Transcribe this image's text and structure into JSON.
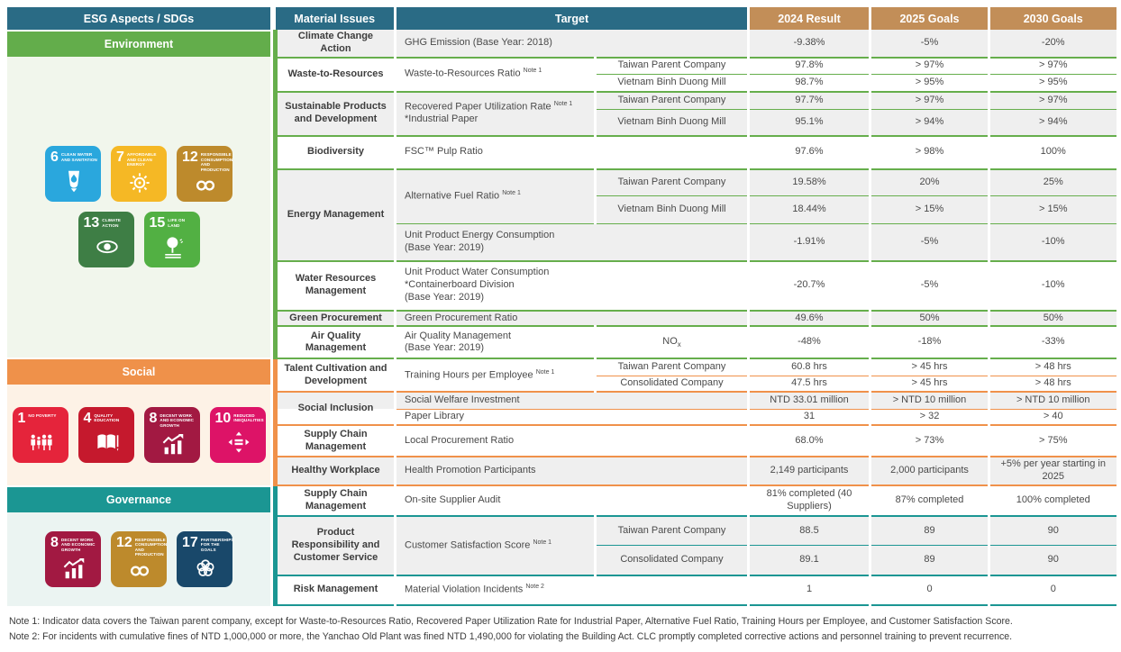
{
  "theme": {
    "header": "#2a6b85",
    "accent": "#c28e58",
    "env": "#66ae4c",
    "soc": "#f0914a",
    "gov": "#1b9693",
    "alt": "#efefef"
  },
  "left_panel": {
    "header": "ESG Aspects / SDGs",
    "sections": [
      {
        "label": "Environment",
        "color": "#63ad4b",
        "light": "#f1f6ec",
        "sdgs": [
          {
            "num": "6",
            "title": "Clean Water and Sanitation",
            "color": "#2aa7dd"
          },
          {
            "num": "7",
            "title": "Affordable and Clean Energy",
            "color": "#f5b825"
          },
          {
            "num": "12",
            "title": "Responsible Consumption and Production",
            "color": "#bd8a2c"
          },
          {
            "num": "13",
            "title": "Climate Action",
            "color": "#3e7e45"
          },
          {
            "num": "15",
            "title": "Life on Land",
            "color": "#52b043"
          }
        ]
      },
      {
        "label": "Social",
        "color": "#ef914a",
        "light": "#fdf2e6",
        "sdgs": [
          {
            "num": "1",
            "title": "No Poverty",
            "color": "#e5243b"
          },
          {
            "num": "4",
            "title": "Quality Education",
            "color": "#c5192d"
          },
          {
            "num": "8",
            "title": "Decent Work and Economic Growth",
            "color": "#a21942"
          },
          {
            "num": "10",
            "title": "Reduced Inequalities",
            "color": "#dd1367"
          }
        ]
      },
      {
        "label": "Governance",
        "color": "#1b9693",
        "light": "#ebf4f2",
        "sdgs": [
          {
            "num": "8",
            "title": "Decent Work and Economic Growth",
            "color": "#a21942"
          },
          {
            "num": "12",
            "title": "Responsible Consumption and Production",
            "color": "#bd8a2c"
          },
          {
            "num": "17",
            "title": "Partnerships for the Goals",
            "color": "#19486a"
          }
        ]
      }
    ]
  },
  "table": {
    "headers": {
      "material": "Material Issues",
      "target": "Target",
      "r2024": "2024 Result",
      "g2025": "2025 Goals",
      "g2030": "2030 Goals"
    },
    "rows": [
      {
        "m": "Climate Change Action",
        "t": "GHG Emission (Base Year: 2018)",
        "v": [
          "-9.38%",
          "-5%",
          "-20%"
        ]
      },
      {
        "m": "Waste-to-Resources",
        "t": "Waste-to-Resources Ratio ^[Note 1]",
        "sub": "Taiwan Parent Company",
        "v": [
          "97.8%",
          "> 97%",
          "> 97%"
        ]
      },
      {
        "sub": "Vietnam Binh Duong Mill",
        "v": [
          "98.7%",
          "> 95%",
          "> 95%"
        ]
      },
      {
        "m": "Sustainable Products and Development",
        "t": "Recovered Paper Utilization Rate ^[Note 1]\n*Industrial Paper",
        "sub": "Taiwan Parent Company",
        "v": [
          "97.7%",
          "> 97%",
          "> 97%"
        ]
      },
      {
        "sub": "Vietnam Binh Duong Mill",
        "v": [
          "95.1%",
          "> 94%",
          "> 94%"
        ]
      },
      {
        "m": "Biodiversity",
        "t": "FSC™ Pulp Ratio",
        "v": [
          "97.6%",
          "> 98%",
          "100%"
        ]
      },
      {
        "m": "Energy Management",
        "t": "Alternative Fuel Ratio ^[Note 1]",
        "sub": "Taiwan Parent Company",
        "v": [
          "19.58%",
          "20%",
          "25%"
        ]
      },
      {
        "sub": "Vietnam Binh Duong Mill",
        "v": [
          "18.44%",
          "> 15%",
          "> 15%"
        ]
      },
      {
        "t": "Unit Product Energy Consumption\n(Base Year: 2019)",
        "v": [
          "-1.91%",
          "-5%",
          "-10%"
        ]
      },
      {
        "m": "Water Resources Management",
        "t": "Unit Product Water Consumption\n*Containerboard Division\n(Base Year: 2019)",
        "v": [
          "-20.7%",
          "-5%",
          "-10%"
        ]
      },
      {
        "m": "Green Procurement",
        "t": "Green Procurement Ratio",
        "v": [
          "49.6%",
          "50%",
          "50%"
        ]
      },
      {
        "m": "Air Quality Management",
        "t": "Air Quality Management\n(Base Year: 2019)",
        "sub": "NO_[x]",
        "v": [
          "-48%",
          "-18%",
          "-33%"
        ]
      },
      {
        "m": "Talent Cultivation and Development",
        "t": "Training Hours per Employee ^[Note 1]",
        "sub": "Taiwan Parent Company",
        "v": [
          "60.8 hrs",
          "> 45 hrs",
          "> 48 hrs"
        ]
      },
      {
        "sub": "Consolidated Company",
        "v": [
          "47.5 hrs",
          "> 45 hrs",
          "> 48 hrs"
        ]
      },
      {
        "m": "Social Inclusion",
        "t": "Social Welfare Investment",
        "v": [
          "NTD 33.01 million",
          "> NTD 10 million",
          "> NTD 10 million"
        ]
      },
      {
        "t": "Paper Library",
        "v": [
          "31",
          "> 32",
          "> 40"
        ]
      },
      {
        "m": "Supply Chain Management",
        "t": "Local Procurement Ratio",
        "v": [
          "68.0%",
          "> 73%",
          "> 75%"
        ]
      },
      {
        "m": "Healthy Workplace",
        "t": "Health Promotion Participants",
        "v": [
          "2,149 participants",
          "2,000 participants",
          "+5% per year starting in 2025"
        ]
      },
      {
        "m": "Supply Chain Management",
        "t": "On-site Supplier Audit",
        "v": [
          "81% completed (40 Suppliers)",
          "87% completed",
          "100% completed"
        ]
      },
      {
        "m": "Product Responsibility and Customer Service",
        "t": "Customer Satisfaction Score ^[Note 1]",
        "sub": "Taiwan Parent Company",
        "v": [
          "88.5",
          "89",
          "90"
        ]
      },
      {
        "sub": "Consolidated Company",
        "v": [
          "89.1",
          "89",
          "90"
        ]
      },
      {
        "m": "Risk Management",
        "t": "Material Violation Incidents ^[Note 2]",
        "v": [
          "1",
          "0",
          "0"
        ]
      }
    ]
  },
  "notes": [
    "Note 1: Indicator data covers the Taiwan parent company, except for Waste-to-Resources Ratio, Recovered Paper Utilization Rate for Industrial Paper, Alternative Fuel Ratio, Training Hours per Employee, and Customer Satisfaction Score.",
    "Note 2: For incidents with cumulative fines of NTD 1,000,000 or more, the Yanchao Old Plant was fined NTD 1,490,000 for violating the Building Act. CLC promptly completed corrective actions and personnel training to prevent recurrence."
  ]
}
